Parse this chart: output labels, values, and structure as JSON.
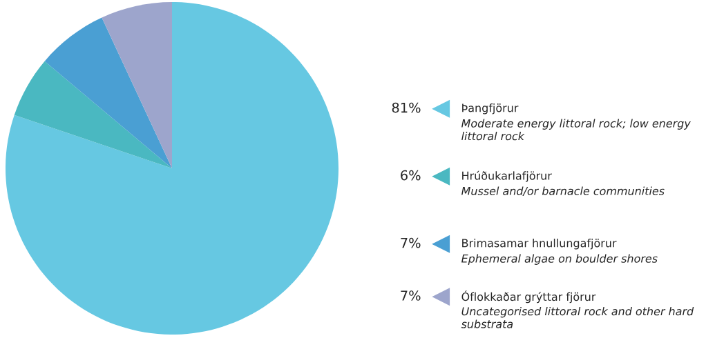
{
  "chart_data": {
    "type": "pie",
    "categories": [
      "Þangfjörur",
      "Hrúðukarlafjörur",
      "Brimasamar hnullungafjörur",
      "Óflokkaðar grýttar fjörur"
    ],
    "values": [
      81,
      6,
      7,
      7
    ],
    "value_labels": [
      "81%",
      "6%",
      "7%",
      "7%"
    ],
    "colors": [
      "#66c8e2",
      "#4ab8c1",
      "#4a9fd3",
      "#9da5cc"
    ],
    "annotations": [
      "Moderate energy littoral rock; low energy littoral rock",
      "Mussel and/or barnacle communities",
      "Ephemeral algae on boulder shores",
      "Uncategorised littoral rock and other hard substrata"
    ],
    "legend": "right"
  }
}
